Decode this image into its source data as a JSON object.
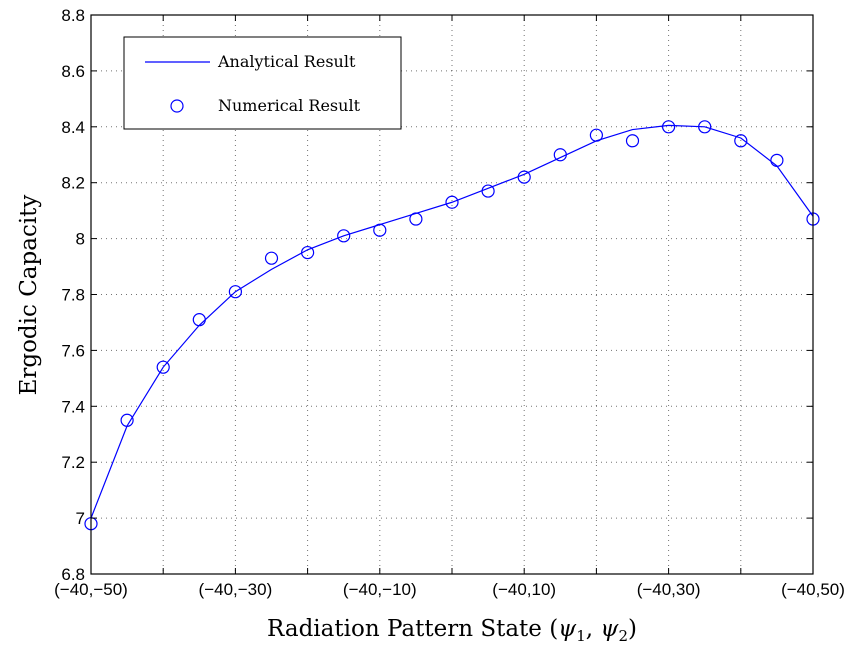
{
  "chart_data": {
    "type": "line",
    "xlabel": "Radiation Pattern State (ψ1, ψ2)",
    "xlabel_parts": {
      "prefix": "Radiation Pattern State (",
      "psi": "ψ",
      "sub1": "1",
      "sep": ", ",
      "sub2": "2",
      "suffix": ")"
    },
    "ylabel": "Ergodic Capacity",
    "x_tick_labels": [
      "(−40,−50)",
      "(−40,−30)",
      "(−40,−10)",
      "(−40,10)",
      "(−40,30)",
      "(−40,50)"
    ],
    "x": [
      -50,
      -45,
      -40,
      -35,
      -30,
      -25,
      -20,
      -15,
      -10,
      -5,
      0,
      5,
      10,
      15,
      20,
      25,
      30,
      35,
      40,
      45,
      50
    ],
    "x_tick_values": [
      -50,
      -30,
      -10,
      10,
      30,
      50
    ],
    "xlim": [
      -50,
      50
    ],
    "ylim": [
      6.8,
      8.8
    ],
    "y_ticks": [
      6.8,
      7.0,
      7.2,
      7.4,
      7.6,
      7.8,
      8.0,
      8.2,
      8.4,
      8.6,
      8.8
    ],
    "y_tick_labels": [
      "6.8",
      "7",
      "7.2",
      "7.4",
      "7.6",
      "7.8",
      "8",
      "8.2",
      "8.4",
      "8.6",
      "8.8"
    ],
    "grid": true,
    "legend_position": "top-left",
    "series": [
      {
        "name": "Analytical Result",
        "style": "line",
        "color": "#0000ff",
        "values": [
          7.0,
          7.33,
          7.54,
          7.69,
          7.81,
          7.89,
          7.96,
          8.01,
          8.05,
          8.09,
          8.13,
          8.18,
          8.23,
          8.29,
          8.35,
          8.39,
          8.405,
          8.4,
          8.36,
          8.26,
          8.08
        ]
      },
      {
        "name": "Numerical Result",
        "style": "markers",
        "marker": "circle",
        "color": "#0000ff",
        "values": [
          6.98,
          7.35,
          7.54,
          7.71,
          7.81,
          7.93,
          7.95,
          8.01,
          8.03,
          8.07,
          8.13,
          8.17,
          8.22,
          8.3,
          8.37,
          8.35,
          8.4,
          8.4,
          8.35,
          8.28,
          8.07
        ]
      }
    ]
  }
}
